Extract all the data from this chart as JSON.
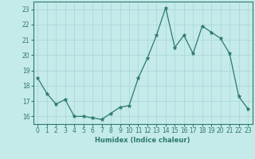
{
  "x": [
    0,
    1,
    2,
    3,
    4,
    5,
    6,
    7,
    8,
    9,
    10,
    11,
    12,
    13,
    14,
    15,
    16,
    17,
    18,
    19,
    20,
    21,
    22,
    23
  ],
  "y": [
    18.5,
    17.5,
    16.8,
    17.1,
    16.0,
    16.0,
    15.9,
    15.8,
    16.2,
    16.6,
    16.7,
    18.5,
    19.8,
    21.3,
    23.1,
    20.5,
    21.3,
    20.1,
    21.9,
    21.5,
    21.1,
    20.1,
    17.3,
    16.5
  ],
  "line_color": "#2d7a6b",
  "marker": "*",
  "marker_size": 3.5,
  "bg_color": "#c5eaea",
  "grid_color": "#a8d5d5",
  "xlabel": "Humidex (Indice chaleur)",
  "ylim": [
    15.5,
    23.5
  ],
  "xlim": [
    -0.5,
    23.5
  ],
  "yticks": [
    16,
    17,
    18,
    19,
    20,
    21,
    22,
    23
  ],
  "xticks": [
    0,
    1,
    2,
    3,
    4,
    5,
    6,
    7,
    8,
    9,
    10,
    11,
    12,
    13,
    14,
    15,
    16,
    17,
    18,
    19,
    20,
    21,
    22,
    23
  ],
  "label_color": "#2d7a6b",
  "tick_color": "#2d7a6b",
  "spine_color": "#2d7a6b",
  "xlabel_fontsize": 6.0,
  "tick_fontsize": 5.5
}
